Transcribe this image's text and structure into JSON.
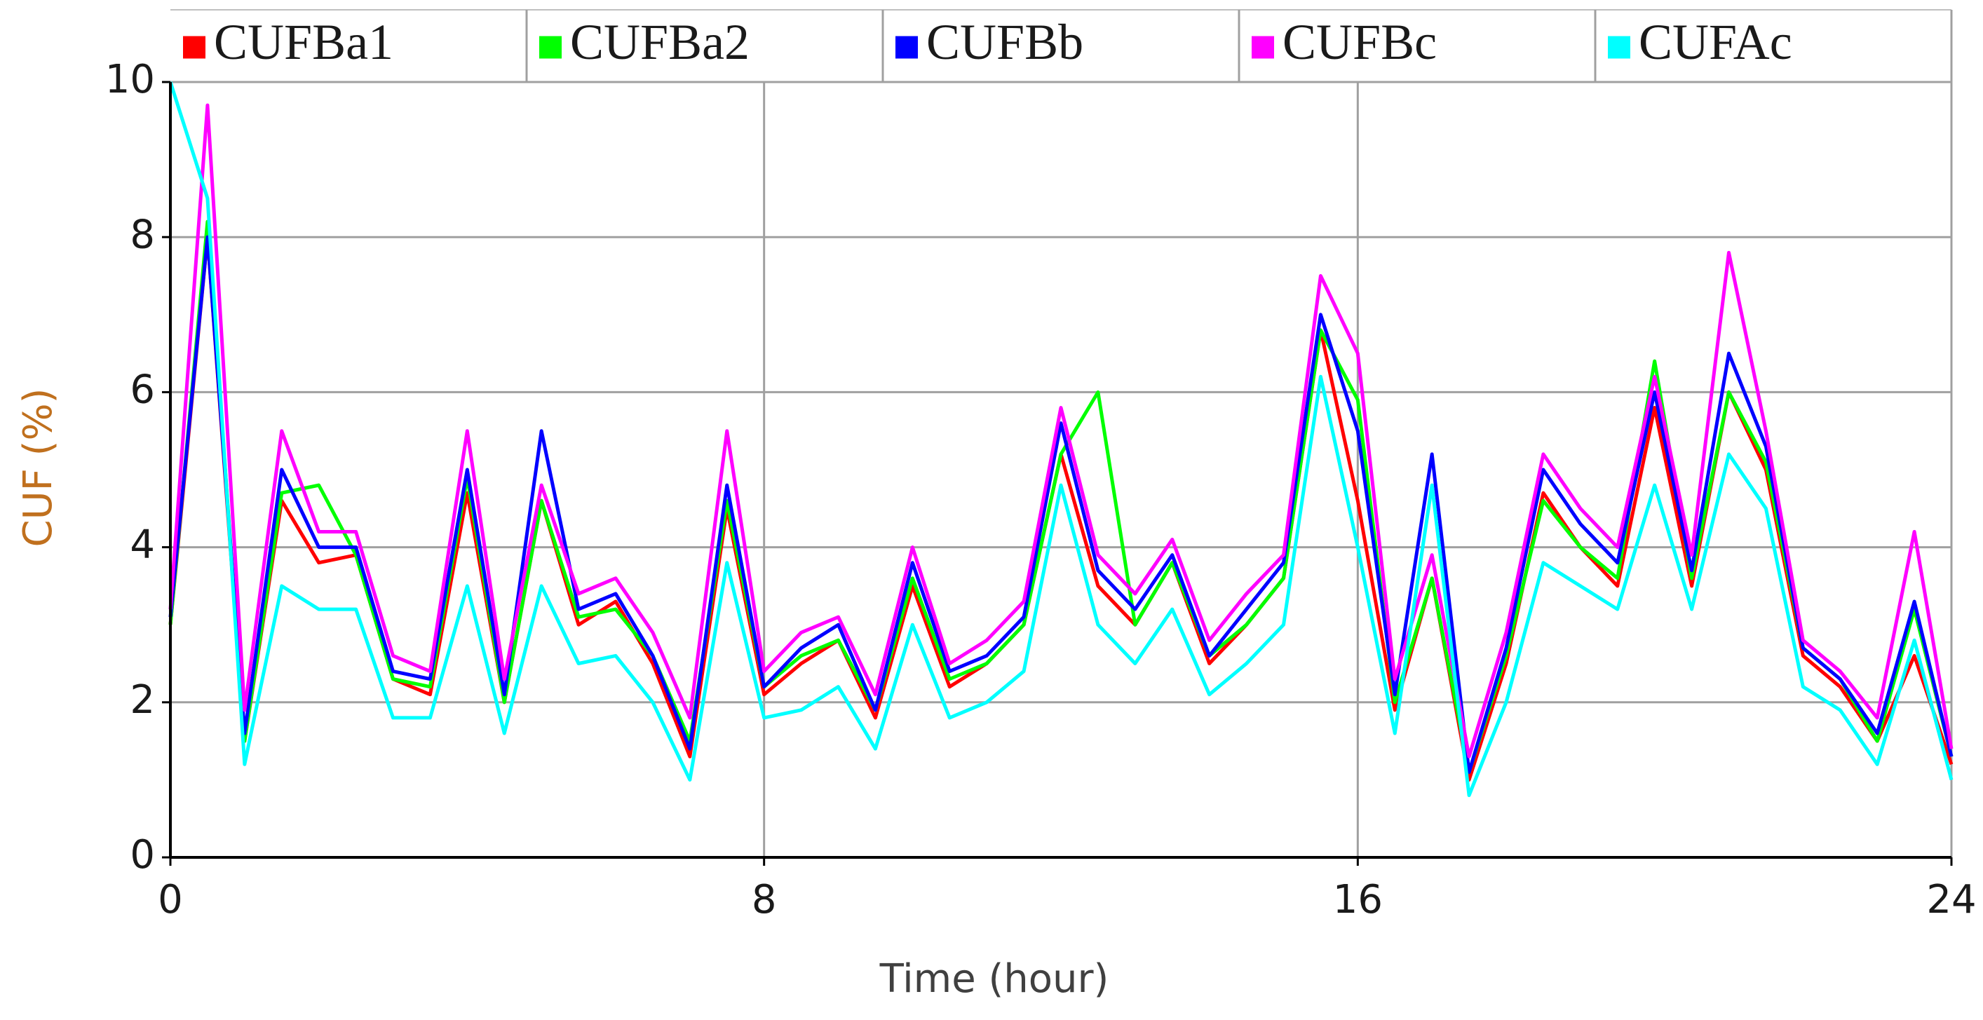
{
  "chart_data": {
    "type": "line",
    "x_label": "Time (hour)",
    "y_label": "CUF (%)",
    "x": [
      0,
      0.5,
      1,
      1.5,
      2,
      2.5,
      3,
      3.5,
      4,
      4.5,
      5,
      5.5,
      6,
      6.5,
      7,
      7.5,
      8,
      8.5,
      9,
      9.5,
      10,
      10.5,
      11,
      11.5,
      12,
      12.5,
      13,
      13.5,
      14,
      14.5,
      15,
      15.5,
      16,
      16.5,
      17,
      17.5,
      18,
      18.5,
      19,
      19.5,
      20,
      20.5,
      21,
      21.5,
      22,
      22.5,
      23,
      23.5,
      24
    ],
    "series": [
      {
        "name": "CUFBa1",
        "color": "#ff0000",
        "values": [
          3.0,
          8.0,
          1.5,
          4.6,
          3.8,
          3.9,
          2.3,
          2.1,
          4.7,
          2.0,
          4.6,
          3.0,
          3.3,
          2.5,
          1.3,
          4.5,
          2.1,
          2.5,
          2.8,
          1.8,
          3.5,
          2.2,
          2.5,
          3.0,
          5.2,
          3.5,
          3.0,
          3.8,
          2.5,
          3.0,
          3.6,
          6.8,
          4.6,
          1.9,
          3.6,
          1.0,
          2.5,
          4.7,
          4.0,
          3.5,
          5.8,
          3.5,
          6.0,
          5.0,
          2.6,
          2.2,
          1.5,
          2.6,
          1.2
        ]
      },
      {
        "name": "CUFBa2",
        "color": "#00ff00",
        "values": [
          3.0,
          8.2,
          1.5,
          4.7,
          4.8,
          3.9,
          2.3,
          2.2,
          4.9,
          2.0,
          4.6,
          3.1,
          3.2,
          2.6,
          1.5,
          4.6,
          2.2,
          2.6,
          2.8,
          1.9,
          3.6,
          2.3,
          2.5,
          3.0,
          5.2,
          6.0,
          3.0,
          3.8,
          2.6,
          3.0,
          3.6,
          6.8,
          5.9,
          2.0,
          3.6,
          1.1,
          2.6,
          4.6,
          4.0,
          3.6,
          6.4,
          3.6,
          6.0,
          5.1,
          2.7,
          2.3,
          1.5,
          3.2,
          1.3
        ]
      },
      {
        "name": "CUFBb",
        "color": "#0000ff",
        "values": [
          3.1,
          8.0,
          1.6,
          5.0,
          4.0,
          4.0,
          2.4,
          2.3,
          5.0,
          2.1,
          5.5,
          3.2,
          3.4,
          2.6,
          1.4,
          4.8,
          2.2,
          2.7,
          3.0,
          1.9,
          3.8,
          2.4,
          2.6,
          3.1,
          5.6,
          3.7,
          3.2,
          3.9,
          2.6,
          3.2,
          3.8,
          7.0,
          5.5,
          2.1,
          5.2,
          1.1,
          2.7,
          5.0,
          4.3,
          3.8,
          6.0,
          3.7,
          6.5,
          5.3,
          2.7,
          2.3,
          1.6,
          3.3,
          1.3
        ]
      },
      {
        "name": "CUFBc",
        "color": "#ff00ff",
        "values": [
          3.2,
          9.7,
          1.9,
          5.5,
          4.2,
          4.2,
          2.6,
          2.4,
          5.5,
          2.3,
          4.8,
          3.4,
          3.6,
          2.9,
          1.8,
          5.5,
          2.4,
          2.9,
          3.1,
          2.1,
          4.0,
          2.5,
          2.8,
          3.3,
          5.8,
          3.9,
          3.4,
          4.1,
          2.8,
          3.4,
          3.9,
          7.5,
          6.5,
          2.3,
          3.9,
          1.3,
          2.9,
          5.2,
          4.5,
          4.0,
          6.2,
          3.9,
          7.8,
          5.5,
          2.8,
          2.4,
          1.8,
          4.2,
          1.4
        ]
      },
      {
        "name": "CUFAc",
        "color": "#00ffff",
        "values": [
          10,
          8.5,
          1.2,
          3.5,
          3.2,
          3.2,
          1.8,
          1.8,
          3.5,
          1.6,
          3.5,
          2.5,
          2.6,
          2.0,
          1.0,
          3.8,
          1.8,
          1.9,
          2.2,
          1.4,
          3.0,
          1.8,
          2.0,
          2.4,
          4.8,
          3.0,
          2.5,
          3.2,
          2.1,
          2.5,
          3.0,
          6.2,
          4.0,
          1.6,
          4.8,
          0.8,
          2.0,
          3.8,
          3.5,
          3.2,
          4.8,
          3.2,
          5.2,
          4.5,
          2.2,
          1.9,
          1.2,
          2.8,
          1.0
        ]
      }
    ],
    "xlim": [
      0,
      24
    ],
    "xticks": [
      0,
      8,
      16,
      24
    ],
    "ylim": [
      0,
      10
    ],
    "yticks": [
      0,
      2,
      4,
      6,
      8,
      10
    ],
    "grid": true,
    "legend": "top"
  }
}
